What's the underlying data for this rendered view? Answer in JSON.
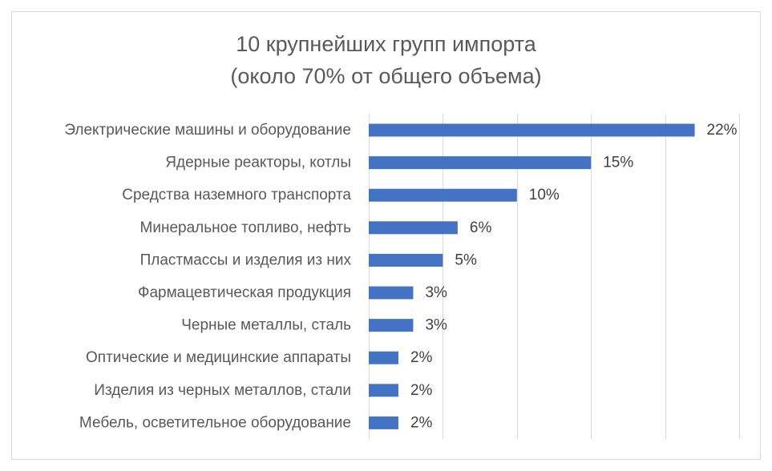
{
  "chart_data": {
    "type": "bar",
    "orientation": "horizontal",
    "title": "10 крупнейших групп импорта",
    "subtitle": "(около 70% от общего объема)",
    "categories": [
      "Электрические машины и оборудование",
      "Ядерные реакторы, котлы",
      "Средства наземного транспорта",
      "Минеральное топливо, нефть",
      "Пластмассы и изделия из них",
      "Фармацевтическая продукция",
      "Черные металлы, сталь",
      "Оптические и медицинские аппараты",
      "Изделия из черных металлов, стали",
      "Мебель, осветительное оборудование"
    ],
    "values": [
      22,
      15,
      10,
      6,
      5,
      3,
      3,
      2,
      2,
      2
    ],
    "value_labels": [
      "22%",
      "15%",
      "10%",
      "6%",
      "5%",
      "3%",
      "3%",
      "2%",
      "2%",
      "2%"
    ],
    "xlim": [
      0,
      25
    ],
    "x_gridlines": [
      0,
      5,
      10,
      15,
      20,
      25
    ],
    "unit": "%",
    "xlabel": "",
    "ylabel": "",
    "grid": true,
    "legend": "none",
    "bar_color": "#4472C4"
  }
}
